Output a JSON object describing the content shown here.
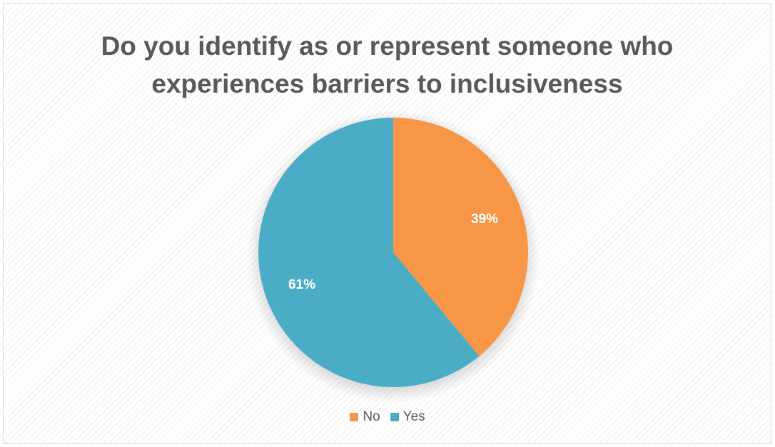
{
  "chart_data": {
    "type": "pie",
    "title_lines": [
      "Do you identify as or represent someone who",
      "experiences barriers to inclusiveness"
    ],
    "categories": [
      "No",
      "Yes"
    ],
    "values": [
      39,
      61
    ],
    "labels": [
      "39%",
      "61%"
    ],
    "colors": [
      "#F79646",
      "#4BACC6"
    ],
    "legend_position": "bottom"
  }
}
